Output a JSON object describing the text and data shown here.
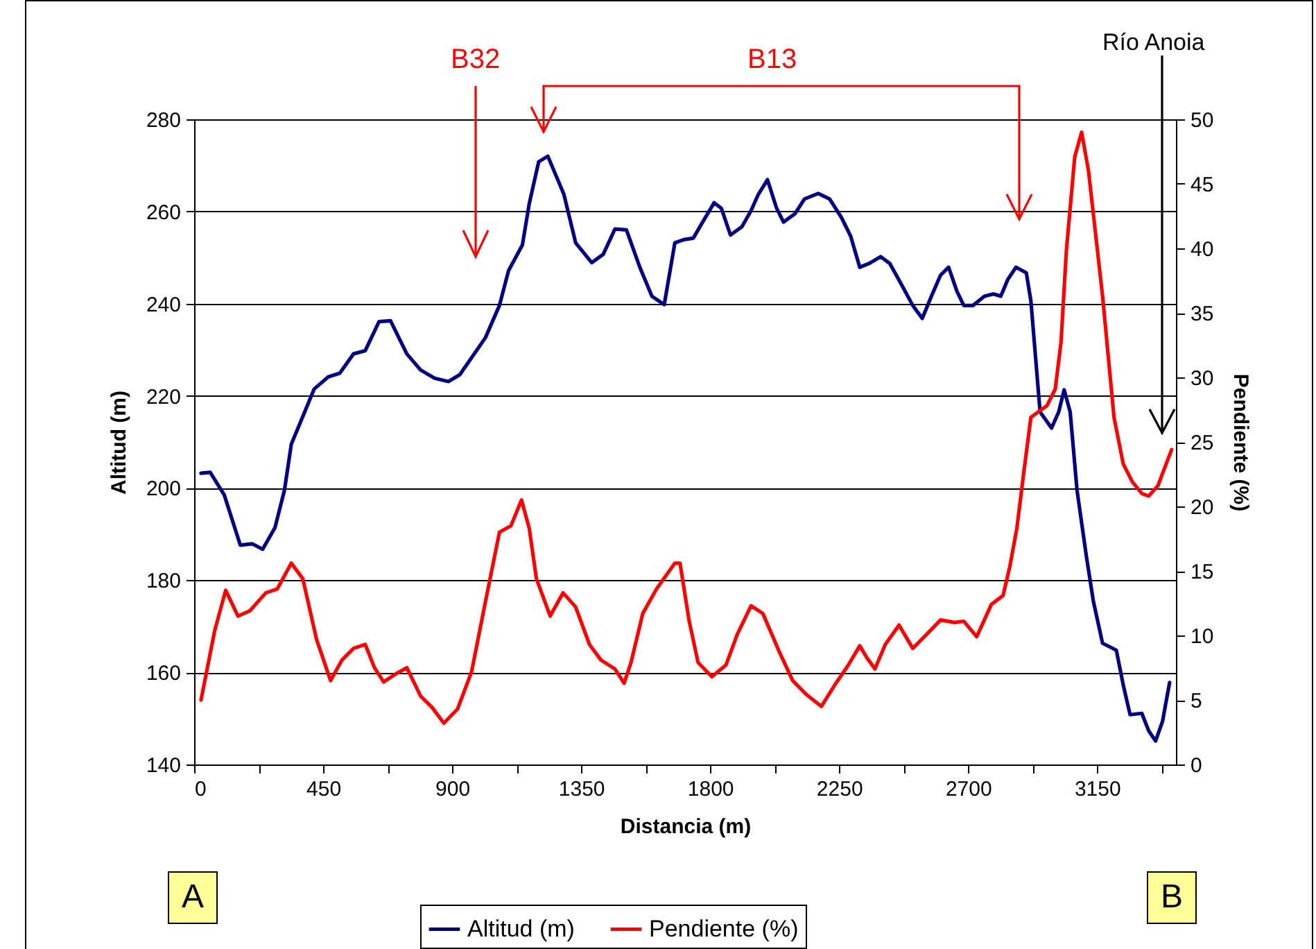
{
  "chart_data": {
    "type": "line",
    "xlabel": "Distancia (m)",
    "ylabel": "Altitud (m)",
    "y2label": "Pendiente (%)",
    "xlim": [
      0,
      3425
    ],
    "xticks": [
      0,
      {
        "value": 225,
        "label": null
      },
      450,
      {
        "value": 675,
        "label": null
      },
      900,
      {
        "value": 1125,
        "label": null
      },
      1350,
      {
        "value": 1575,
        "label": null
      },
      1800,
      {
        "value": 2025,
        "label": null
      },
      2250,
      {
        "value": 2475,
        "label": null
      },
      2700,
      {
        "value": 2925,
        "label": null
      },
      3150,
      {
        "value": 3375,
        "label": null
      }
    ],
    "ylim": [
      140,
      280
    ],
    "yticks": [
      140,
      160,
      180,
      200,
      220,
      240,
      260,
      280
    ],
    "y2lim": [
      0,
      50
    ],
    "y2ticks": [
      0,
      5,
      10,
      15,
      20,
      25,
      30,
      35,
      40,
      45,
      50
    ],
    "grid": "y",
    "legend": "bottom",
    "series": [
      {
        "name": "Altitud (m)",
        "color": "#000080",
        "x": [
          24,
          56,
          105,
          161,
          202,
          239,
          282,
          315,
          339,
          379,
          419,
          468,
          508,
          556,
          597,
          645,
          685,
          742,
          790,
          839,
          887,
          927,
          1016,
          1065,
          1097,
          1145,
          1169,
          1202,
          1234,
          1290,
          1331,
          1387,
          1427,
          1468,
          1508,
          1556,
          1597,
          1640,
          1677,
          1709,
          1741,
          1774,
          1814,
          1839,
          1871,
          1911,
          1943,
          1968,
          2000,
          2032,
          2056,
          2096,
          2129,
          2177,
          2217,
          2258,
          2290,
          2322,
          2354,
          2395,
          2427,
          2467,
          2507,
          2540,
          2572,
          2604,
          2632,
          2661,
          2685,
          2717,
          2757,
          2789,
          2814,
          2838,
          2867,
          2903,
          2919,
          2935,
          2951,
          2991,
          3016,
          3035,
          3056,
          3080,
          3112,
          3137,
          3169,
          3217,
          3241,
          3265,
          3306,
          3330,
          3354,
          3378,
          3403
        ],
        "values": [
          203.2,
          203.4,
          198.5,
          187.6,
          187.9,
          186.7,
          191.4,
          199.5,
          209.5,
          215.5,
          221.5,
          224.1,
          224.9,
          229.1,
          229.8,
          236.1,
          236.3,
          229.1,
          225.6,
          223.8,
          223.1,
          224.6,
          232.6,
          239.6,
          247.2,
          252.7,
          261.7,
          270.8,
          272.0,
          263.7,
          253.2,
          248.9,
          250.7,
          256.2,
          256.0,
          247.7,
          241.6,
          239.8,
          253.2,
          253.9,
          254.2,
          257.7,
          261.9,
          260.7,
          254.9,
          256.7,
          260.2,
          263.7,
          266.9,
          260.7,
          257.7,
          259.5,
          262.7,
          263.9,
          262.7,
          258.7,
          254.7,
          247.9,
          248.7,
          250.2,
          248.7,
          244.2,
          239.6,
          236.8,
          241.6,
          246.2,
          247.9,
          242.7,
          239.6,
          239.6,
          241.6,
          242.1,
          241.6,
          245.2,
          247.9,
          246.7,
          240.6,
          228.6,
          216.5,
          213.0,
          216.5,
          221.3,
          216.5,
          199.5,
          185.4,
          175.4,
          166.3,
          164.8,
          157.3,
          150.8,
          151.1,
          147.3,
          145.1,
          149.3,
          157.8
        ]
      },
      {
        "name": "Pendiente (%)",
        "color": "#ff0000",
        "axis": "y2",
        "x": [
          24,
          72,
          110,
          153,
          194,
          250,
          290,
          339,
          379,
          427,
          476,
          516,
          556,
          597,
          629,
          661,
          702,
          742,
          790,
          831,
          871,
          919,
          968,
          1016,
          1065,
          1105,
          1142,
          1169,
          1194,
          1242,
          1287,
          1331,
          1379,
          1419,
          1468,
          1500,
          1524,
          1565,
          1613,
          1677,
          1695,
          1727,
          1758,
          1806,
          1855,
          1895,
          1943,
          1984,
          2040,
          2088,
          2137,
          2188,
          2233,
          2282,
          2322,
          2346,
          2375,
          2411,
          2459,
          2507,
          2556,
          2604,
          2653,
          2685,
          2730,
          2781,
          2822,
          2846,
          2870,
          2894,
          2919,
          2943,
          2975,
          3004,
          3024,
          3043,
          3072,
          3096,
          3120,
          3169,
          3209,
          3241,
          3273,
          3306,
          3330,
          3362,
          3410
        ],
        "values": [
          5.0,
          10.4,
          13.5,
          11.5,
          11.9,
          13.3,
          13.6,
          15.6,
          14.4,
          9.7,
          6.5,
          8.1,
          9.0,
          9.3,
          7.5,
          6.4,
          7.0,
          7.5,
          5.3,
          4.4,
          3.2,
          4.3,
          7.2,
          12.6,
          18.0,
          18.5,
          20.5,
          18.3,
          14.4,
          11.5,
          13.3,
          12.2,
          9.3,
          8.1,
          7.4,
          6.3,
          7.9,
          11.7,
          13.6,
          15.6,
          15.6,
          11.1,
          7.9,
          6.8,
          7.7,
          10.1,
          12.3,
          11.7,
          8.8,
          6.5,
          5.4,
          4.5,
          6.1,
          7.7,
          9.2,
          8.3,
          7.4,
          9.3,
          10.8,
          9.0,
          10.1,
          11.2,
          11.0,
          11.1,
          9.9,
          12.4,
          13.1,
          15.4,
          18.3,
          22.6,
          26.9,
          27.3,
          27.8,
          29.1,
          32.7,
          39.9,
          47.1,
          49.0,
          46.0,
          36.3,
          26.9,
          23.3,
          21.9,
          21.0,
          20.8,
          21.6,
          24.4
        ]
      }
    ],
    "annotations": [
      "B32",
      "B13",
      "Río Anoia",
      "A",
      "B"
    ]
  }
}
